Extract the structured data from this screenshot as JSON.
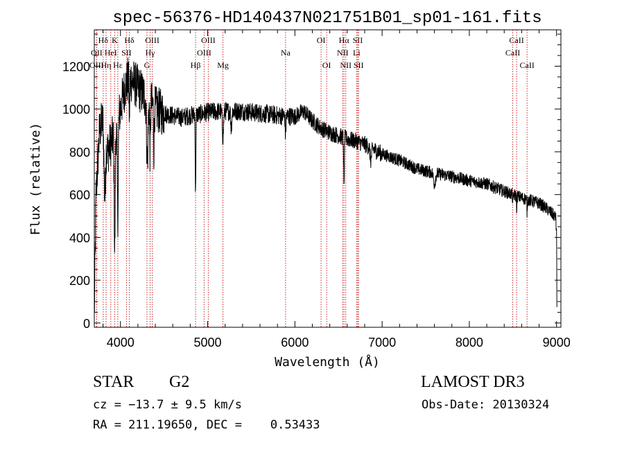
{
  "chart_data": {
    "type": "line",
    "title": "spec-56376-HD140437N021751B01_sp01-161.fits",
    "xlabel": "Wavelength (Å)",
    "ylabel": "Flux (relative)",
    "xlim": [
      3700,
      9050
    ],
    "ylim": [
      -20,
      1370
    ],
    "x_ticks": [
      4000,
      5000,
      6000,
      7000,
      8000,
      9000
    ],
    "y_ticks": [
      0,
      200,
      400,
      600,
      800,
      1000,
      1200
    ],
    "grid": false,
    "series": [
      {
        "name": "spectrum",
        "continuum_points": [
          [
            3700,
            30
          ],
          [
            3720,
            600
          ],
          [
            3760,
            900
          ],
          [
            3800,
            950
          ],
          [
            3850,
            800
          ],
          [
            3900,
            850
          ],
          [
            3950,
            900
          ],
          [
            4000,
            1000
          ],
          [
            4050,
            1100
          ],
          [
            4100,
            1150
          ],
          [
            4200,
            1100
          ],
          [
            4300,
            1050
          ],
          [
            4400,
            1000
          ],
          [
            4500,
            980
          ],
          [
            4600,
            970
          ],
          [
            4700,
            960
          ],
          [
            4800,
            970
          ],
          [
            4900,
            975
          ],
          [
            5000,
            985
          ],
          [
            5200,
            990
          ],
          [
            5400,
            990
          ],
          [
            5500,
            985
          ],
          [
            5700,
            975
          ],
          [
            5800,
            970
          ],
          [
            6000,
            965
          ],
          [
            6100,
            990
          ],
          [
            6200,
            945
          ],
          [
            6300,
            910
          ],
          [
            6400,
            890
          ],
          [
            6500,
            875
          ],
          [
            6600,
            860
          ],
          [
            6700,
            850
          ],
          [
            6800,
            835
          ],
          [
            7000,
            790
          ],
          [
            7200,
            760
          ],
          [
            7400,
            720
          ],
          [
            7600,
            700
          ],
          [
            7800,
            685
          ],
          [
            8000,
            665
          ],
          [
            8200,
            650
          ],
          [
            8400,
            615
          ],
          [
            8600,
            585
          ],
          [
            8800,
            560
          ],
          [
            8900,
            530
          ],
          [
            8990,
            495
          ],
          [
            9000,
            420
          ],
          [
            9005,
            20
          ]
        ],
        "absorption_features": [
          [
            3820,
            300,
            12
          ],
          [
            3934,
            550,
            8
          ],
          [
            3969,
            450,
            8
          ],
          [
            4102,
            180,
            6
          ],
          [
            4308,
            300,
            12
          ],
          [
            4340,
            250,
            6
          ],
          [
            4383,
            200,
            5
          ],
          [
            4861,
            380,
            5
          ],
          [
            5175,
            120,
            10
          ],
          [
            5270,
            80,
            8
          ],
          [
            5893,
            90,
            6
          ],
          [
            6563,
            250,
            5
          ],
          [
            6870,
            60,
            12
          ],
          [
            7600,
            50,
            15
          ],
          [
            8498,
            50,
            4
          ],
          [
            8542,
            60,
            4
          ],
          [
            8662,
            60,
            4
          ]
        ]
      }
    ],
    "line_markers": [
      {
        "label": "Hδ",
        "x": 3802,
        "row": 1
      },
      {
        "label": "K",
        "x": 3934,
        "row": 1
      },
      {
        "label": "Hδ",
        "x": 4102,
        "row": 1
      },
      {
        "label": "OIII",
        "x": 4364,
        "row": 1
      },
      {
        "label": "OIII",
        "x": 5007,
        "row": 1
      },
      {
        "label": "OI",
        "x": 6300,
        "row": 1
      },
      {
        "label": "Hα",
        "x": 6563,
        "row": 1
      },
      {
        "label": "SII",
        "x": 6720,
        "row": 1
      },
      {
        "label": "CaII",
        "x": 8542,
        "row": 1
      },
      {
        "label": "OII",
        "x": 3727,
        "row": 2
      },
      {
        "label": "HeI",
        "x": 3889,
        "row": 2
      },
      {
        "label": "SII",
        "x": 4069,
        "row": 2
      },
      {
        "label": "Hγ",
        "x": 4340,
        "row": 2
      },
      {
        "label": "OIII",
        "x": 4959,
        "row": 2
      },
      {
        "label": "Na",
        "x": 5893,
        "row": 2
      },
      {
        "label": "NII",
        "x": 6548,
        "row": 2
      },
      {
        "label": "Li",
        "x": 6708,
        "row": 2
      },
      {
        "label": "CaII",
        "x": 8498,
        "row": 2
      },
      {
        "label": "OIII",
        "x": 3726,
        "row": 3
      },
      {
        "label": "Hη",
        "x": 3835,
        "row": 3
      },
      {
        "label": "Hε",
        "x": 3970,
        "row": 3
      },
      {
        "label": "G",
        "x": 4304,
        "row": 3
      },
      {
        "label": "Hβ",
        "x": 4861,
        "row": 3
      },
      {
        "label": "Mg",
        "x": 5175,
        "row": 3
      },
      {
        "label": "OI",
        "x": 6364,
        "row": 3
      },
      {
        "label": "NII",
        "x": 6583,
        "row": 3
      },
      {
        "label": "SII",
        "x": 6730,
        "row": 3
      },
      {
        "label": "CaII",
        "x": 8662,
        "row": 3
      }
    ]
  },
  "info": {
    "object_class": "STAR",
    "subclass": "G2",
    "survey": "LAMOST DR3",
    "cz": "cz = −13.7 ± 9.5 km/s",
    "obs_date": "Obs-Date: 20130324",
    "coords": "RA = 211.19650, DEC =    0.53433"
  }
}
